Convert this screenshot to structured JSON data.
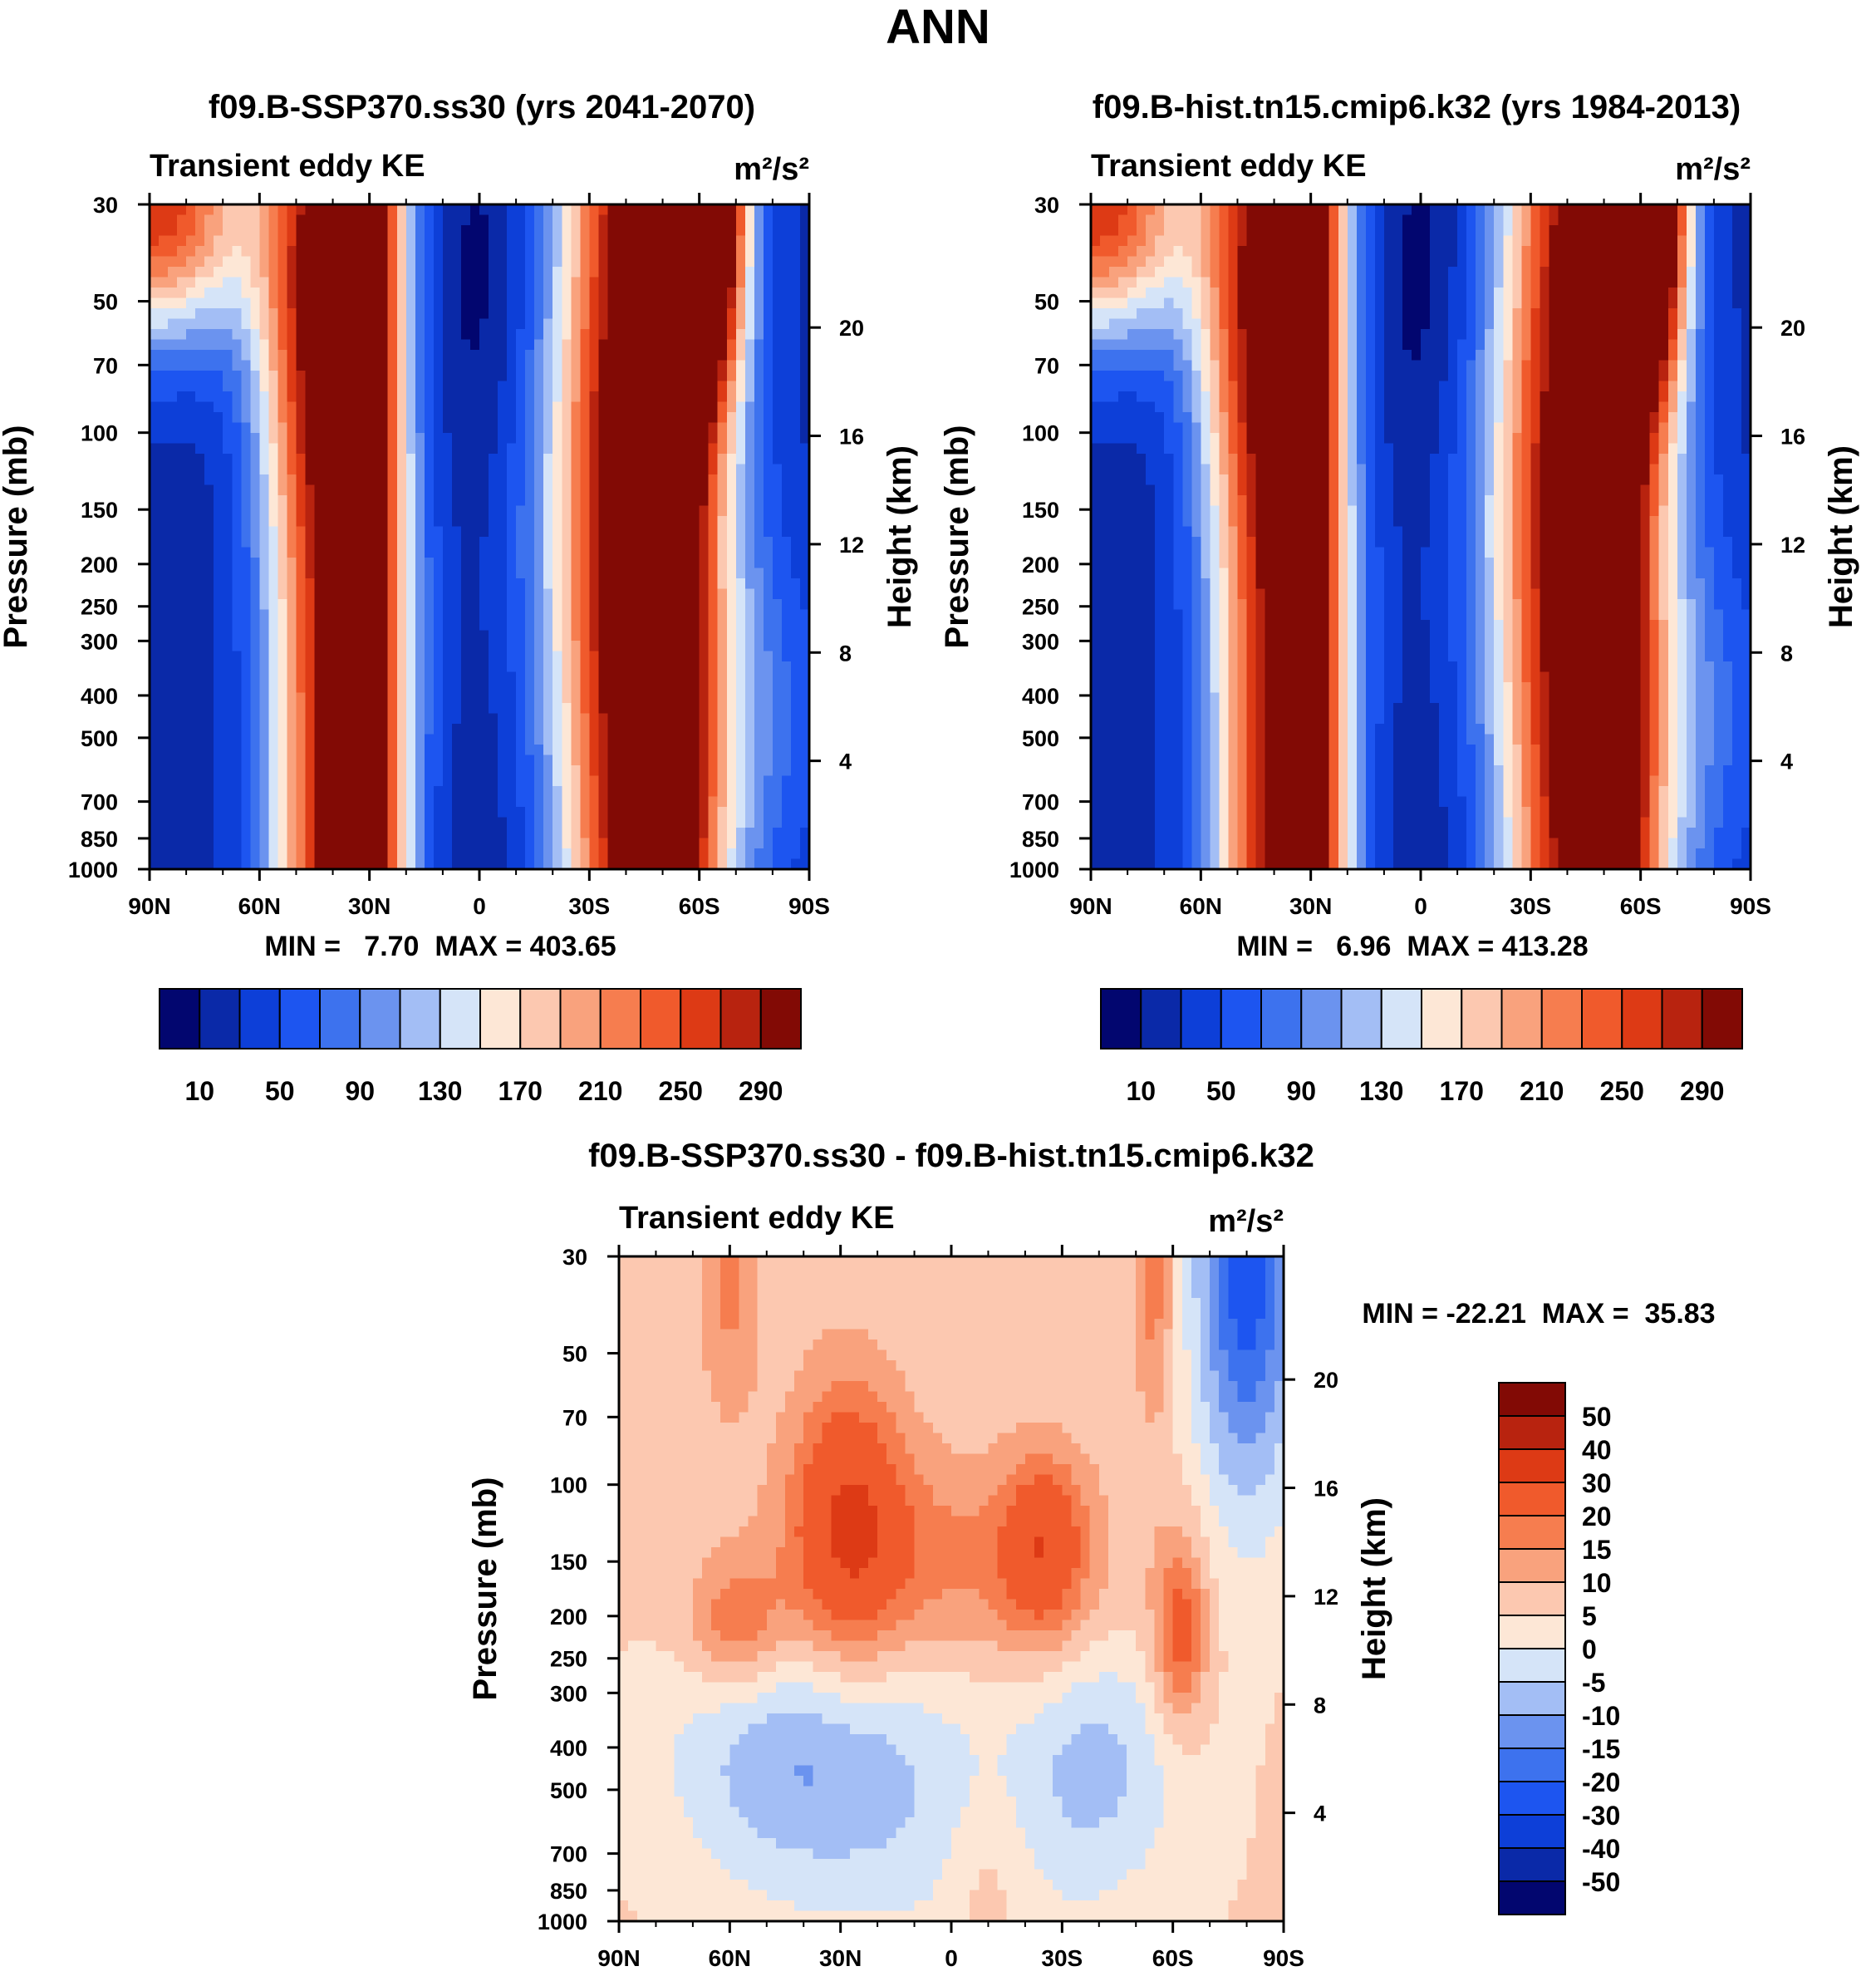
{
  "chart_data": [
    {
      "type": "heatmap",
      "panel": "left",
      "title": "f09.B-SSP370.ss30 (yrs 2041-2070)",
      "label_left": "Transient eddy KE",
      "label_right": "m²/s²",
      "units": "m²/s²",
      "xlabel": "",
      "ylabel": "Pressure (mb)",
      "ylabel2": "Height (km)",
      "x_ticks": [
        "90N",
        "60N",
        "30N",
        "0",
        "30S",
        "60S",
        "90S"
      ],
      "y_ticks": [
        "30",
        "50",
        "70",
        "100",
        "150",
        "200",
        "250",
        "300",
        "400",
        "500",
        "700",
        "850",
        "1000"
      ],
      "y2_ticks": [
        "20",
        "16",
        "12",
        "8",
        "4"
      ],
      "stats": "MIN =   7.70  MAX = 403.65",
      "min": 7.7,
      "max": 403.65,
      "colorbar_labels": [
        "10",
        "50",
        "90",
        "130",
        "170",
        "210",
        "250",
        "290"
      ],
      "levels": [
        10,
        30,
        50,
        70,
        90,
        110,
        130,
        150,
        170,
        190,
        210,
        230,
        250,
        270,
        290
      ]
    },
    {
      "type": "heatmap",
      "panel": "right",
      "title": "f09.B-hist.tn15.cmip6.k32 (yrs 1984-2013)",
      "label_left": "Transient eddy KE",
      "label_right": "m²/s²",
      "units": "m²/s²",
      "xlabel": "",
      "ylabel": "Pressure (mb)",
      "ylabel2": "Height (km)",
      "x_ticks": [
        "90N",
        "60N",
        "30N",
        "0",
        "30S",
        "60S",
        "90S"
      ],
      "y_ticks": [
        "30",
        "50",
        "70",
        "100",
        "150",
        "200",
        "250",
        "300",
        "400",
        "500",
        "700",
        "850",
        "1000"
      ],
      "y2_ticks": [
        "20",
        "16",
        "12",
        "8",
        "4"
      ],
      "stats": "MIN =   6.96  MAX = 413.28",
      "min": 6.96,
      "max": 413.28,
      "colorbar_labels": [
        "10",
        "50",
        "90",
        "130",
        "170",
        "210",
        "250",
        "290"
      ],
      "levels": [
        10,
        30,
        50,
        70,
        90,
        110,
        130,
        150,
        170,
        190,
        210,
        230,
        250,
        270,
        290
      ]
    },
    {
      "type": "heatmap",
      "panel": "difference",
      "title": "f09.B-SSP370.ss30 - f09.B-hist.tn15.cmip6.k32",
      "label_left": "Transient eddy KE",
      "label_right": "m²/s²",
      "units": "m²/s²",
      "xlabel": "",
      "ylabel": "Pressure (mb)",
      "ylabel2": "Height (km)",
      "x_ticks": [
        "90N",
        "60N",
        "30N",
        "0",
        "30S",
        "60S",
        "90S"
      ],
      "y_ticks": [
        "30",
        "50",
        "70",
        "100",
        "150",
        "200",
        "250",
        "300",
        "400",
        "500",
        "700",
        "850",
        "1000"
      ],
      "y2_ticks": [
        "20",
        "16",
        "12",
        "8",
        "4"
      ],
      "stats": "MIN = -22.21  MAX =  35.83",
      "min": -22.21,
      "max": 35.83,
      "colorbar_labels": [
        "50",
        "40",
        "30",
        "20",
        "15",
        "10",
        "5",
        "0",
        "-5",
        "-10",
        "-15",
        "-20",
        "-30",
        "-40",
        "-50"
      ],
      "levels": [
        -50,
        -40,
        -30,
        -20,
        -15,
        -10,
        -5,
        0,
        5,
        10,
        15,
        20,
        30,
        40,
        50
      ]
    }
  ],
  "figure": {
    "main_title": "ANN",
    "colors_16": [
      "#02066f",
      "#0a29a8",
      "#0d3fd8",
      "#1d55f0",
      "#3d72ee",
      "#6b93ef",
      "#a3bef5",
      "#d5e4f8",
      "#fde7d6",
      "#fcc8b0",
      "#f9a27d",
      "#f67d4f",
      "#f05a2c",
      "#dd3a15",
      "#b8230f",
      "#820a05"
    ]
  }
}
